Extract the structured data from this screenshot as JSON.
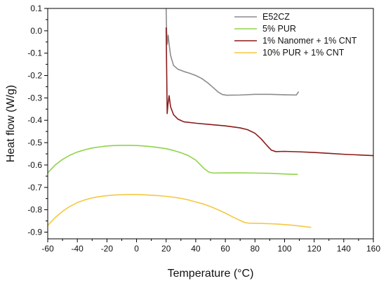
{
  "chart_data": {
    "type": "line",
    "title": "",
    "xlabel": "Temperature (°C)",
    "ylabel": "Heat flow (W/g)",
    "xlim": [
      -60,
      160
    ],
    "ylim": [
      -0.93,
      0.1
    ],
    "x_ticks": [
      -60,
      -40,
      -20,
      0,
      20,
      40,
      60,
      80,
      100,
      120,
      140,
      160
    ],
    "x_tick_labels": [
      "-60",
      "-40",
      "-20",
      "0",
      "20",
      "40",
      "60",
      "80",
      "100",
      "120",
      "140",
      "160"
    ],
    "y_ticks": [
      0.1,
      0.0,
      -0.1,
      -0.2,
      -0.3,
      -0.4,
      -0.5,
      -0.6,
      -0.7,
      -0.8,
      -0.9
    ],
    "y_tick_labels": [
      "0.1",
      "0.0",
      "-0.1",
      "-0.2",
      "-0.3",
      "-0.4",
      "-0.5",
      "-0.6",
      "-0.7",
      "-0.8",
      "-0.9"
    ],
    "grid": false,
    "legend_position": "top-right",
    "series": [
      {
        "name": "E52CZ",
        "color": "#8c8c8c",
        "points": [
          [
            20.0,
            0.1
          ],
          [
            20.3,
            0.0
          ],
          [
            20.8,
            -0.06
          ],
          [
            21.4,
            -0.02
          ],
          [
            22,
            -0.06
          ],
          [
            23,
            -0.11
          ],
          [
            25,
            -0.155
          ],
          [
            28,
            -0.172
          ],
          [
            32,
            -0.182
          ],
          [
            36,
            -0.19
          ],
          [
            40,
            -0.2
          ],
          [
            44,
            -0.213
          ],
          [
            48,
            -0.232
          ],
          [
            52,
            -0.255
          ],
          [
            55,
            -0.273
          ],
          [
            58,
            -0.285
          ],
          [
            61,
            -0.288
          ],
          [
            70,
            -0.287
          ],
          [
            80,
            -0.284
          ],
          [
            90,
            -0.284
          ],
          [
            100,
            -0.286
          ],
          [
            108,
            -0.287
          ],
          [
            109.5,
            -0.272
          ]
        ]
      },
      {
        "name": "5% PUR",
        "color": "#8fd44a",
        "points": [
          [
            -60,
            -0.635
          ],
          [
            -55,
            -0.6
          ],
          [
            -50,
            -0.575
          ],
          [
            -45,
            -0.556
          ],
          [
            -40,
            -0.542
          ],
          [
            -35,
            -0.532
          ],
          [
            -30,
            -0.524
          ],
          [
            -25,
            -0.519
          ],
          [
            -20,
            -0.515
          ],
          [
            -15,
            -0.513
          ],
          [
            -10,
            -0.512
          ],
          [
            -5,
            -0.512
          ],
          [
            0,
            -0.513
          ],
          [
            5,
            -0.515
          ],
          [
            10,
            -0.518
          ],
          [
            15,
            -0.522
          ],
          [
            20,
            -0.527
          ],
          [
            25,
            -0.535
          ],
          [
            30,
            -0.545
          ],
          [
            35,
            -0.558
          ],
          [
            40,
            -0.578
          ],
          [
            43,
            -0.598
          ],
          [
            46,
            -0.618
          ],
          [
            49,
            -0.632
          ],
          [
            52,
            -0.636
          ],
          [
            60,
            -0.635
          ],
          [
            70,
            -0.635
          ],
          [
            80,
            -0.636
          ],
          [
            90,
            -0.637
          ],
          [
            100,
            -0.64
          ],
          [
            109,
            -0.642
          ]
        ]
      },
      {
        "name": "1% Nanomer + 1% CNT",
        "color": "#8b1a1a",
        "points": [
          [
            20.0,
            0.015
          ],
          [
            20.4,
            -0.2
          ],
          [
            20.7,
            -0.37
          ],
          [
            21.2,
            -0.33
          ],
          [
            22,
            -0.29
          ],
          [
            23,
            -0.34
          ],
          [
            25,
            -0.375
          ],
          [
            28,
            -0.395
          ],
          [
            32,
            -0.407
          ],
          [
            40,
            -0.413
          ],
          [
            50,
            -0.419
          ],
          [
            60,
            -0.425
          ],
          [
            70,
            -0.434
          ],
          [
            75,
            -0.442
          ],
          [
            80,
            -0.458
          ],
          [
            84,
            -0.482
          ],
          [
            88,
            -0.512
          ],
          [
            91,
            -0.533
          ],
          [
            94,
            -0.54
          ],
          [
            100,
            -0.539
          ],
          [
            110,
            -0.541
          ],
          [
            120,
            -0.544
          ],
          [
            130,
            -0.548
          ],
          [
            140,
            -0.552
          ],
          [
            150,
            -0.555
          ],
          [
            160,
            -0.558
          ]
        ]
      },
      {
        "name": "10% PUR + 1% CNT",
        "color": "#f5c842",
        "points": [
          [
            -60,
            -0.87
          ],
          [
            -55,
            -0.835
          ],
          [
            -50,
            -0.807
          ],
          [
            -45,
            -0.785
          ],
          [
            -40,
            -0.768
          ],
          [
            -35,
            -0.756
          ],
          [
            -30,
            -0.747
          ],
          [
            -25,
            -0.741
          ],
          [
            -20,
            -0.737
          ],
          [
            -15,
            -0.734
          ],
          [
            -10,
            -0.733
          ],
          [
            -5,
            -0.732
          ],
          [
            0,
            -0.732
          ],
          [
            5,
            -0.733
          ],
          [
            10,
            -0.735
          ],
          [
            15,
            -0.737
          ],
          [
            20,
            -0.74
          ],
          [
            25,
            -0.744
          ],
          [
            30,
            -0.749
          ],
          [
            35,
            -0.756
          ],
          [
            40,
            -0.765
          ],
          [
            45,
            -0.774
          ],
          [
            50,
            -0.786
          ],
          [
            55,
            -0.8
          ],
          [
            60,
            -0.815
          ],
          [
            65,
            -0.832
          ],
          [
            70,
            -0.848
          ],
          [
            73,
            -0.857
          ],
          [
            76,
            -0.86
          ],
          [
            85,
            -0.861
          ],
          [
            95,
            -0.864
          ],
          [
            105,
            -0.869
          ],
          [
            112,
            -0.874
          ],
          [
            118,
            -0.879
          ]
        ]
      }
    ]
  }
}
